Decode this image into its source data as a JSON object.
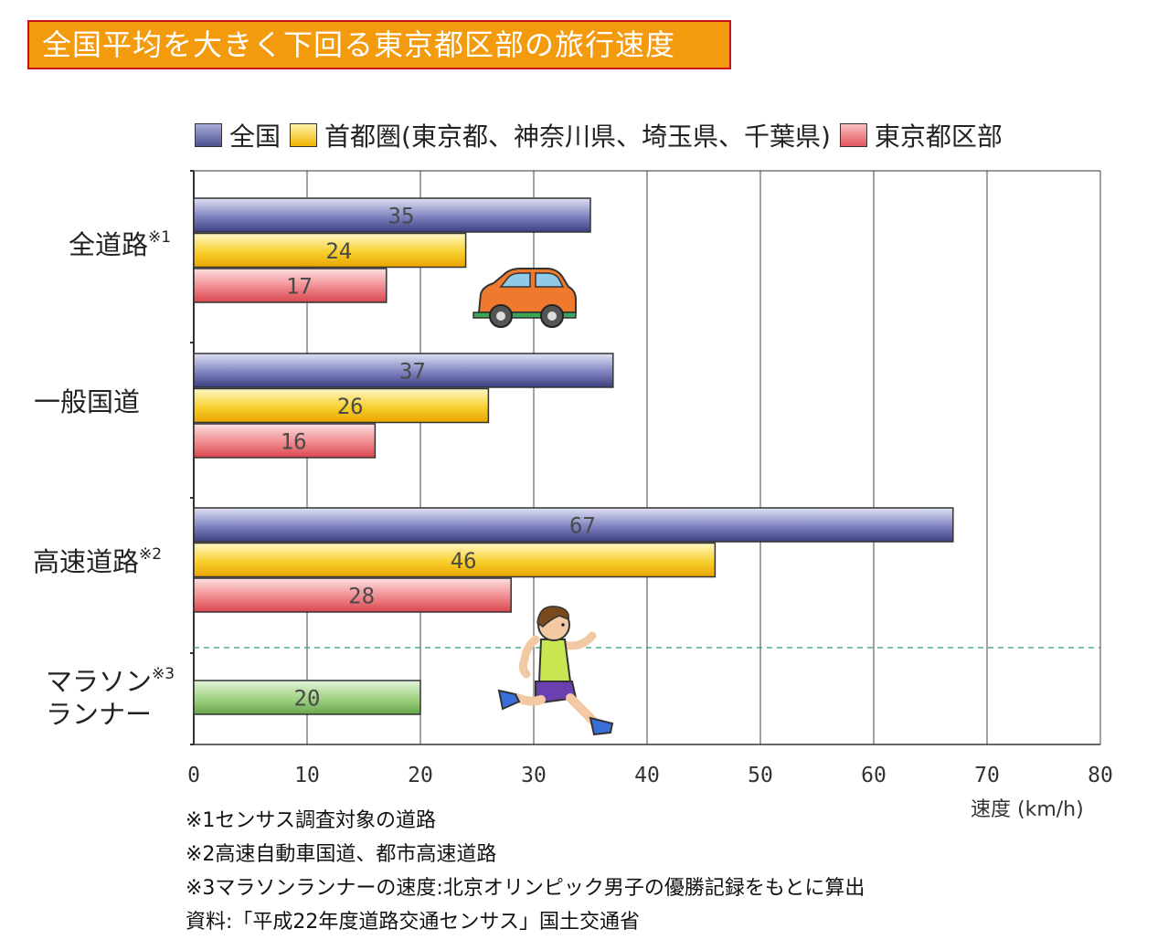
{
  "title": "全国平均を大きく下回る東京都区部の旅行速度",
  "chart_data": {
    "type": "bar",
    "orientation": "horizontal",
    "xlim": [
      0,
      80
    ],
    "xticks": [
      0,
      10,
      20,
      30,
      40,
      50,
      60,
      70,
      80
    ],
    "xlabel": "速度 (km/h)",
    "grid": true,
    "legend_position": "top",
    "series": [
      {
        "name": "全国",
        "color": "#5a5f9c"
      },
      {
        "name": "首都圏(東京都、神奈川県、埼玉県、千葉県)",
        "color": "#f7c21a"
      },
      {
        "name": "東京都区部",
        "color": "#e86a6e"
      }
    ],
    "groups": [
      {
        "label": "全道路",
        "note_mark": "※1",
        "values": [
          35,
          24,
          17
        ]
      },
      {
        "label": "一般国道",
        "note_mark": "",
        "values": [
          37,
          26,
          16
        ]
      },
      {
        "label": "高速道路",
        "note_mark": "※2",
        "values": [
          67,
          46,
          28
        ]
      }
    ],
    "marathon": {
      "label_line1": "マラソン",
      "label_line2": "ランナー",
      "note_mark": "※3",
      "value": 20,
      "color": "#8cc56e"
    }
  },
  "notes": [
    "※1センサス調査対象の道路",
    "※2高速自動車国道、都市高速道路",
    "※3マラソンランナーの速度:北京オリンピック男子の優勝記録をもとに算出",
    "資料:「平成22年度道路交通センサス」国土交通省"
  ]
}
